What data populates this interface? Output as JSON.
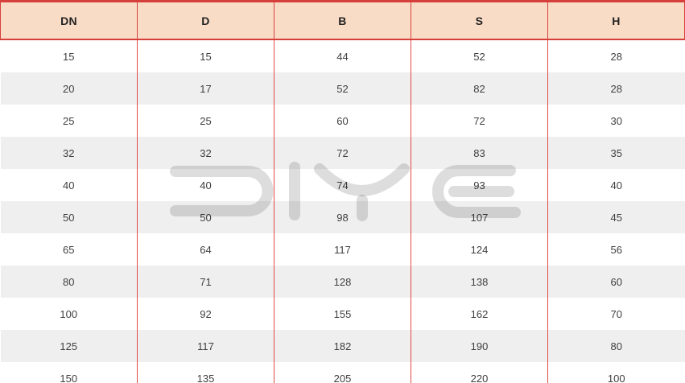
{
  "colors": {
    "header_bg": "#f9dcc6",
    "border_red": "#d6403c",
    "grid_red": "#e14b45",
    "row_alt_bg": "#efefef",
    "header_text": "#222222",
    "cell_text": "#404040",
    "watermark_gray": "#dcdcdc"
  },
  "watermark": {
    "text": "DIYE"
  },
  "table": {
    "columns": [
      "DN",
      "D",
      "B",
      "S",
      "H"
    ],
    "rows": [
      [
        "15",
        "15",
        "44",
        "52",
        "28"
      ],
      [
        "20",
        "17",
        "52",
        "82",
        "28"
      ],
      [
        "25",
        "25",
        "60",
        "72",
        "30"
      ],
      [
        "32",
        "32",
        "72",
        "83",
        "35"
      ],
      [
        "40",
        "40",
        "74",
        "93",
        "40"
      ],
      [
        "50",
        "50",
        "98",
        "107",
        "45"
      ],
      [
        "65",
        "64",
        "117",
        "124",
        "56"
      ],
      [
        "80",
        "71",
        "128",
        "138",
        "60"
      ],
      [
        "100",
        "92",
        "155",
        "162",
        "70"
      ],
      [
        "125",
        "117",
        "182",
        "190",
        "80"
      ],
      [
        "150",
        "135",
        "205",
        "220",
        "100"
      ]
    ]
  },
  "chart_data": {
    "type": "table",
    "title": "",
    "columns": [
      "DN",
      "D",
      "B",
      "S",
      "H"
    ],
    "rows": [
      [
        15,
        15,
        44,
        52,
        28
      ],
      [
        20,
        17,
        52,
        82,
        28
      ],
      [
        25,
        25,
        60,
        72,
        30
      ],
      [
        32,
        32,
        72,
        83,
        35
      ],
      [
        40,
        40,
        74,
        93,
        40
      ],
      [
        50,
        50,
        98,
        107,
        45
      ],
      [
        65,
        64,
        117,
        124,
        56
      ],
      [
        80,
        71,
        128,
        138,
        60
      ],
      [
        100,
        92,
        155,
        162,
        70
      ],
      [
        125,
        117,
        182,
        190,
        80
      ],
      [
        150,
        135,
        205,
        220,
        100
      ]
    ]
  }
}
